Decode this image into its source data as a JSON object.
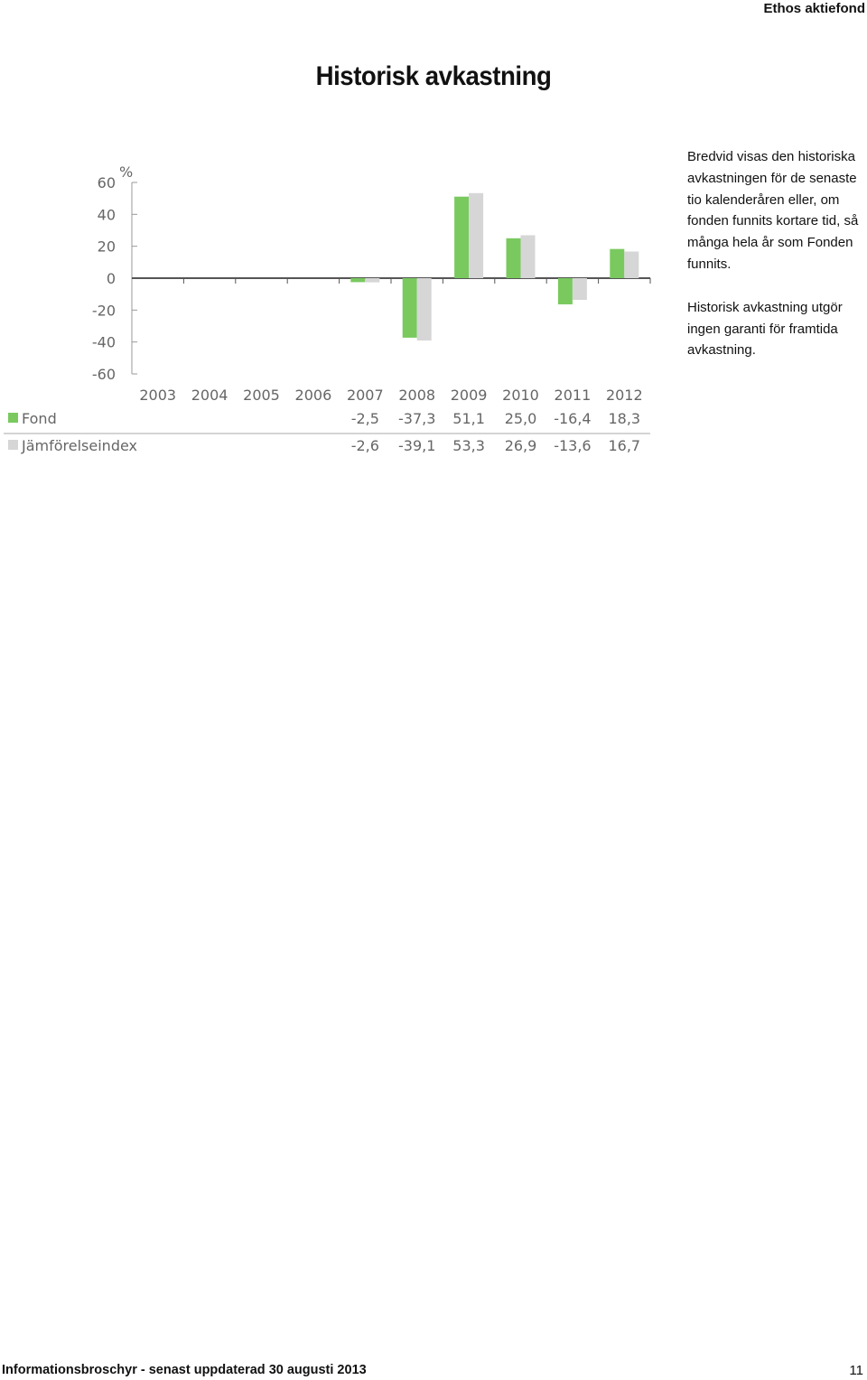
{
  "header": {
    "brand": "Ethos aktiefond"
  },
  "page_title": "Historisk avkastning",
  "side_text": {
    "paragraph_1": "Bredvid visas den historiska avkastningen för de senaste tio kalenderåren eller, om fonden funnits kortare tid, så många hela år som Fonden funnits.",
    "paragraph_2": "Historisk avkastning utgör ingen garanti för framtida avkastning."
  },
  "chart_data": {
    "type": "bar",
    "ylabel": "%",
    "ylim": [
      -60,
      60
    ],
    "yticks": [
      "60",
      "40",
      "20",
      "0",
      "-20",
      "-40",
      "-60"
    ],
    "ytick_values": [
      60,
      40,
      20,
      0,
      -20,
      -40,
      -60
    ],
    "categories": [
      "2003",
      "2004",
      "2005",
      "2006",
      "2007",
      "2008",
      "2009",
      "2010",
      "2011",
      "2012"
    ],
    "series": [
      {
        "name": "Fond",
        "color": "#79c95f",
        "values": [
          null,
          null,
          null,
          null,
          -2.5,
          -37.3,
          51.1,
          25.0,
          -16.4,
          18.3
        ],
        "labels": [
          "",
          "",
          "",
          "",
          "-2,5",
          "-37,3",
          "51,1",
          "25,0",
          "-16,4",
          "18,3"
        ]
      },
      {
        "name": "Jämförelseindex",
        "color": "#d6d6d6",
        "values": [
          null,
          null,
          null,
          null,
          -2.6,
          -39.1,
          53.3,
          26.9,
          -13.6,
          16.7
        ],
        "labels": [
          "",
          "",
          "",
          "",
          "-2,6",
          "-39,1",
          "53,3",
          "26,9",
          "-13,6",
          "16,7"
        ]
      }
    ],
    "legend": "table-below-chart",
    "grid": false
  },
  "footer": {
    "text": "Informationsbroschyr - senast uppdaterad 30 augusti 2013",
    "page_number": "11"
  }
}
